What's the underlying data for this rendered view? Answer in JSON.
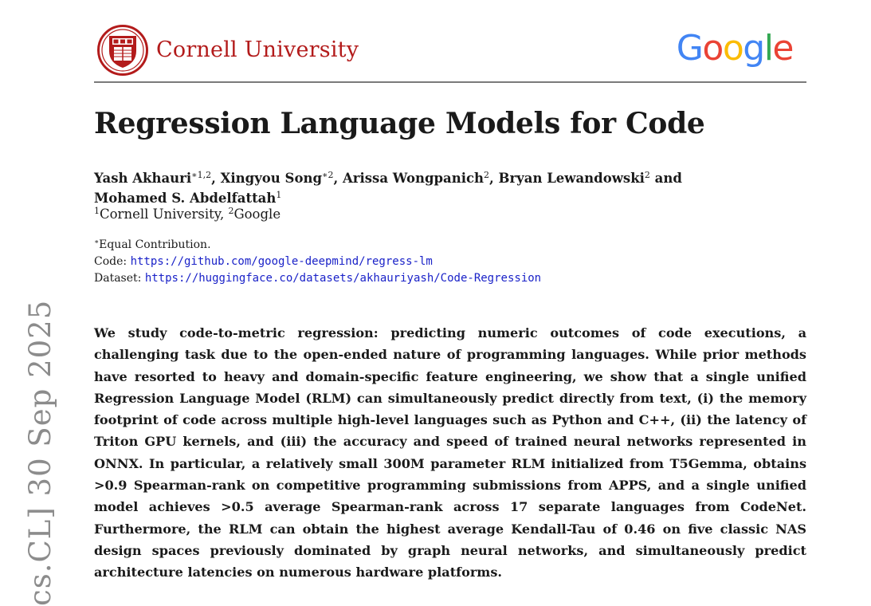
{
  "header": {
    "institution": "Cornell University",
    "partner_logo_letters": [
      {
        "ch": "G",
        "color": "#4285F4"
      },
      {
        "ch": "o",
        "color": "#EA4335"
      },
      {
        "ch": "o",
        "color": "#FBBC05"
      },
      {
        "ch": "g",
        "color": "#4285F4"
      },
      {
        "ch": "l",
        "color": "#34A853"
      },
      {
        "ch": "e",
        "color": "#EA4335"
      }
    ],
    "seal_color": "#b31b1b"
  },
  "paper": {
    "title": "Regression Language Models for Code",
    "authors": [
      {
        "name": "Yash Akhauri",
        "sup": "∗1,2",
        "sep": ", "
      },
      {
        "name": "Xingyou Song",
        "sup": "∗2",
        "sep": ", "
      },
      {
        "name": "Arissa Wongpanich",
        "sup": "2",
        "sep": ", "
      },
      {
        "name": "Bryan Lewandowski",
        "sup": "2",
        "sep": " and "
      },
      {
        "name": "Mohamed S. Abdelfattah",
        "sup": "1",
        "sep": ""
      }
    ],
    "affiliations": [
      {
        "sup": "1",
        "name": "Cornell University",
        "sep": ", "
      },
      {
        "sup": "2",
        "name": "Google",
        "sep": ""
      }
    ],
    "equal_note": "Equal Contribution.",
    "equal_mark": "∗",
    "code_label": "Code:",
    "code_url": "https://github.com/google-deepmind/regress-lm",
    "dataset_label": "Dataset:",
    "dataset_url": "https://huggingface.co/datasets/akhauriyash/Code-Regression",
    "abstract": "We study code-to-metric regression: predicting numeric outcomes of code executions, a challenging task due to the open-ended nature of programming languages. While prior methods have resorted to heavy and domain-specific feature engineering, we show that a single unified Regression Language Model (RLM) can simultaneously predict directly from text, (i) the memory footprint of code across multiple high-level languages such as Python and C++, (ii) the latency of Triton GPU kernels, and (iii) the accuracy and speed of trained neural networks represented in ONNX. In particular, a relatively small 300M parameter RLM initialized from T5Gemma, obtains >0.9 Spearman-rank on competitive programming submissions from APPS, and a single unified model achieves >0.5 average Spearman-rank across 17 separate languages from CodeNet. Furthermore, the RLM can obtain the highest average Kendall-Tau of 0.46 on five classic NAS design spaces previously dominated by graph neural networks, and simultaneously predict architecture latencies on numerous hardware platforms."
  },
  "arxiv_stamp": "cs.CL]  30 Sep 2025"
}
